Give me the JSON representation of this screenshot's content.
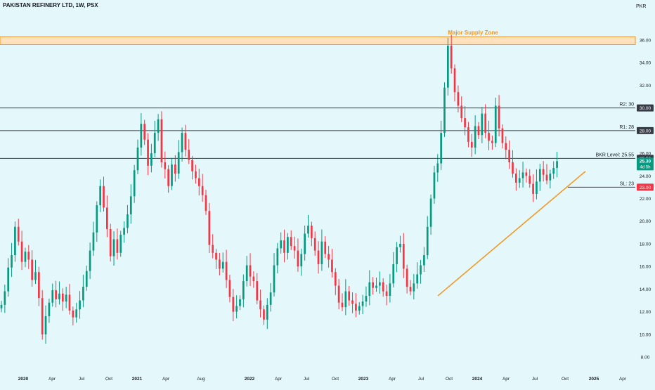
{
  "header": {
    "title": "PAKISTAN REFINERY LTD, 1W, PSX",
    "currency": "PKR"
  },
  "colors": {
    "background": "#e4f8fb",
    "up": "#089981",
    "down": "#f23645",
    "supply_fill": "#ffe2bd",
    "supply_line": "#f7931a",
    "level_line": "#363a45",
    "trendline": "#f7931a",
    "tag_bg": "#363a45",
    "tag_red": "#f23645",
    "price_tag_bg": "#089981"
  },
  "chart_data": {
    "type": "candlestick",
    "title": "PAKISTAN REFINERY LTD, 1W, PSX",
    "y_axis": {
      "ylim": [
        7.5,
        37.2
      ],
      "ticks": [
        "8.00",
        "10.00",
        "12.00",
        "14.00",
        "16.00",
        "18.00",
        "20.00",
        "22.00",
        "24.00",
        "26.00",
        "28.00",
        "30.00",
        "32.00",
        "34.00",
        "36.00"
      ],
      "scale": "linear"
    },
    "x_axis": {
      "ticks": [
        "2020",
        "Apr",
        "Jul",
        "Oct",
        "2021",
        "Apr",
        "Aug",
        "2022",
        "Apr",
        "Jul",
        "Oct",
        "2023",
        "Apr",
        "Jul",
        "Oct",
        "2024",
        "Apr",
        "Jul",
        "Oct",
        "2025",
        "Apr"
      ]
    },
    "grid": false,
    "supply_zone": {
      "label": "Major Supply Zone",
      "low": 35.6,
      "high": 36.3
    },
    "levels": [
      {
        "name": "R2",
        "label": "R2: 30",
        "value": 30,
        "tag": "30.00"
      },
      {
        "name": "R1",
        "label": "R1: 28",
        "value": 28,
        "tag": "28.00"
      },
      {
        "name": "BKR Level",
        "label": "BKR Level: 25.55",
        "value": 25.55,
        "tag": "25.55"
      },
      {
        "name": "SL",
        "label": "SL: 23",
        "value": 23,
        "tag": "23.00"
      }
    ],
    "last_price": {
      "value": 25.3,
      "price_label": "25.30",
      "countdown": "4d 5h"
    },
    "trendline": {
      "from": {
        "x": "2023-09",
        "y": 13.4
      },
      "to": {
        "x": "2024-10",
        "y": 24.4
      }
    },
    "weekly_close": [
      12.6,
      13.8,
      15.9,
      17.0,
      19.5,
      18.2,
      16.4,
      17.3,
      16.6,
      14.8,
      15.5,
      13.2,
      10.0,
      11.6,
      12.8,
      13.9,
      13.1,
      13.6,
      12.9,
      13.5,
      12.1,
      11.5,
      12.2,
      13.0,
      14.2,
      15.6,
      17.4,
      19.0,
      21.4,
      23.1,
      21.2,
      19.3,
      16.9,
      18.4,
      17.2,
      18.8,
      19.4,
      20.6,
      22.2,
      24.5,
      26.5,
      28.6,
      27.2,
      24.9,
      26.0,
      27.8,
      29.0,
      25.2,
      24.6,
      23.1,
      25.0,
      24.2,
      26.1,
      27.8,
      26.3,
      25.4,
      24.4,
      23.8,
      23.1,
      22.3,
      20.9,
      17.9,
      17.2,
      16.6,
      15.8,
      16.4,
      14.8,
      13.3,
      12.0,
      12.5,
      13.1,
      14.7,
      16.1,
      15.1,
      14.7,
      13.0,
      12.2,
      11.3,
      12.6,
      13.7,
      16.1,
      17.6,
      18.3,
      17.2,
      18.6,
      17.8,
      17.4,
      16.0,
      17.1,
      18.9,
      19.6,
      18.5,
      17.4,
      16.2,
      18.2,
      17.1,
      16.6,
      15.5,
      14.3,
      12.8,
      12.4,
      13.8,
      13.0,
      12.7,
      12.1,
      12.5,
      12.9,
      13.4,
      14.6,
      14.1,
      14.3,
      14.6,
      13.8,
      13.4,
      14.5,
      16.2,
      17.7,
      18.0,
      15.8,
      14.2,
      13.8,
      14.5,
      15.3,
      16.1,
      17.0,
      19.5,
      22.0,
      24.3,
      25.1,
      27.8,
      31.8,
      35.5,
      33.5,
      31.4,
      30.2,
      29.1,
      28.3,
      27.0,
      26.5,
      28.4,
      27.6,
      29.5,
      27.8,
      27.1,
      26.9,
      30.2,
      28.2,
      26.9,
      26.3,
      25.2,
      24.2,
      23.4,
      23.8,
      24.3,
      24.0,
      23.3,
      22.4,
      23.5,
      24.6,
      24.1,
      23.6,
      24.2,
      24.7,
      25.3
    ]
  }
}
